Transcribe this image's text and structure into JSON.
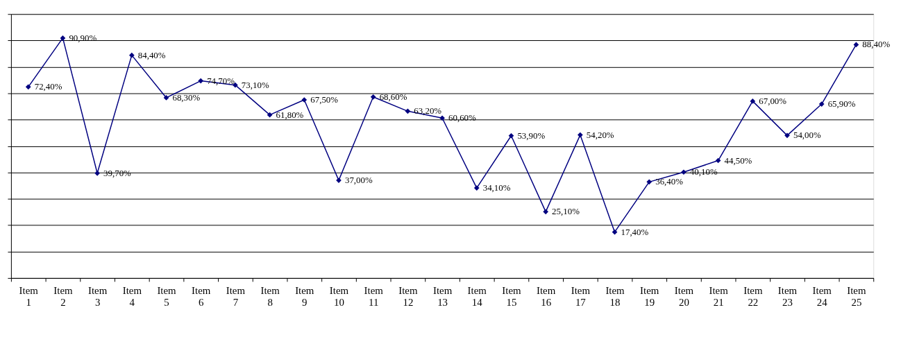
{
  "chart_data": {
    "type": "line",
    "categories": [
      "Item 1",
      "Item 2",
      "Item 3",
      "Item 4",
      "Item 5",
      "Item 6",
      "Item 7",
      "Item 8",
      "Item 9",
      "Item 10",
      "Item 11",
      "Item 12",
      "Item 13",
      "Item 14",
      "Item 15",
      "Item 16",
      "Item 17",
      "Item 18",
      "Item 19",
      "Item 20",
      "Item 21",
      "Item 22",
      "Item 23",
      "Item 24",
      "Item 25"
    ],
    "series": [
      {
        "color": "#000080",
        "values": [
          72.4,
          90.9,
          39.7,
          84.4,
          68.3,
          74.7,
          73.1,
          61.8,
          67.5,
          37.0,
          68.6,
          63.2,
          60.6,
          34.1,
          53.9,
          25.1,
          54.2,
          17.4,
          36.4,
          40.1,
          44.5,
          67.0,
          54.0,
          65.9,
          88.4
        ],
        "value_labels": [
          "72,40%",
          "90,90%",
          "39,70%",
          "84,40%",
          "68,30%",
          "74,70%",
          "73,10%",
          "61,80%",
          "67,50%",
          "37,00%",
          "68,60%",
          "63,20%",
          "60,60%",
          "34,10%",
          "53,90%",
          "25,10%",
          "54,20%",
          "17,40%",
          "36,40%",
          "40,10%",
          "44,50%",
          "67,00%",
          "54,00%",
          "65,90%",
          "88,40%"
        ]
      }
    ],
    "ylim": [
      0,
      100
    ],
    "yticks": [
      {
        "value": 0,
        "label": null
      },
      {
        "value": 10,
        "label": null
      },
      {
        "value": 20,
        "label": null
      },
      {
        "value": 30,
        "label": null
      },
      {
        "value": 40,
        "label": null
      },
      {
        "value": 50,
        "label": null
      },
      {
        "value": 60,
        "label": null
      },
      {
        "value": 70,
        "label": null
      },
      {
        "value": 80,
        "label": null
      },
      {
        "value": 90,
        "label": null
      },
      {
        "value": 100,
        "label": null
      }
    ],
    "tick_labels": "x",
    "grid": "y",
    "marker": "diamond",
    "line_style": "solid"
  }
}
